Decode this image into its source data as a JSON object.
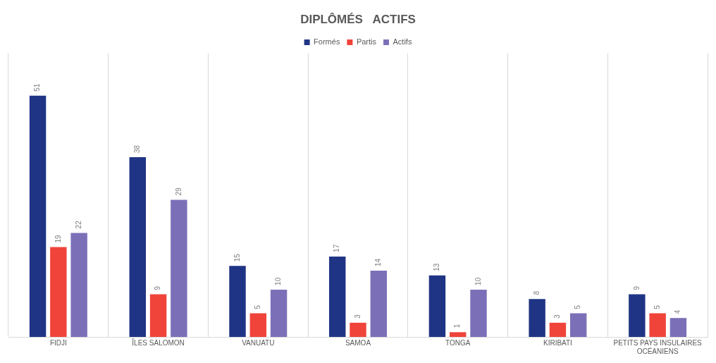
{
  "chart_data": {
    "type": "bar",
    "title": "DIPLÔMÉS   ACTIFS",
    "categories": [
      "FIDJI",
      "ÎLES SALOMON",
      "VANUATU",
      "SAMOA",
      "TONGA",
      "KIRIBATI",
      "PETITS PAYS INSULAIRES OCÉANIENS"
    ],
    "series": [
      {
        "name": "Formés",
        "color": "#1f3484",
        "values": [
          51,
          38,
          15,
          17,
          13,
          8,
          9
        ]
      },
      {
        "name": "Partis",
        "color": "#f0443a",
        "values": [
          19,
          9,
          5,
          3,
          1,
          3,
          5
        ]
      },
      {
        "name": "Actifs",
        "color": "#7b70b8",
        "values": [
          22,
          29,
          10,
          14,
          10,
          5,
          4
        ]
      }
    ],
    "data_labels": true,
    "grid": "x",
    "legend": "top"
  }
}
